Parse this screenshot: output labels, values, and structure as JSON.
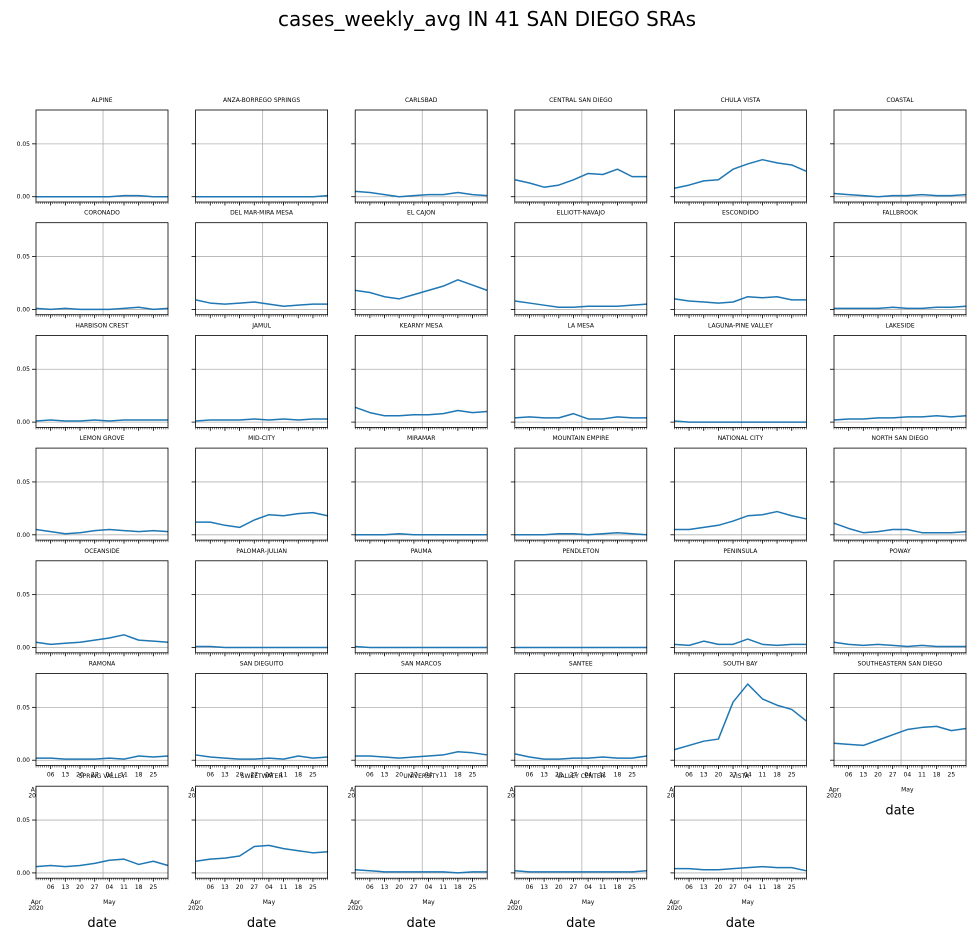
{
  "chart_data": {
    "type": "line",
    "title": "cases_weekly_avg IN 41 SAN DIEGO SRAs",
    "xlabel": "date",
    "x_range": [
      "2020-03-30",
      "2020-06-01"
    ],
    "ylim": [
      -0.005,
      0.082
    ],
    "yticks": [
      "0.00",
      "0.05"
    ],
    "ytick_values": [
      0.0,
      0.05
    ],
    "xticks": [
      {
        "date": "2020-04-06",
        "label": "06"
      },
      {
        "date": "2020-04-13",
        "label": "13"
      },
      {
        "date": "2020-04-20",
        "label": "20"
      },
      {
        "date": "2020-04-27",
        "label": "27"
      },
      {
        "date": "2020-05-04",
        "label": "04"
      },
      {
        "date": "2020-05-11",
        "label": "11"
      },
      {
        "date": "2020-05-18",
        "label": "18"
      },
      {
        "date": "2020-05-25",
        "label": "25"
      }
    ],
    "x_month_labels": [
      {
        "date": "2020-03-30",
        "label": "Apr",
        "sublabel": "2020"
      },
      {
        "date": "2020-05-04",
        "label": "May"
      }
    ],
    "grid": true,
    "line_color": "#1f77b4",
    "grid_line_dates": [
      "2020-05-01"
    ],
    "grid_line_values": [
      0.0,
      0.05
    ],
    "layout_rows": 7,
    "layout_cols": 6,
    "series_x_dates": [
      "2020-03-30",
      "2020-04-06",
      "2020-04-13",
      "2020-04-20",
      "2020-04-27",
      "2020-05-04",
      "2020-05-11",
      "2020-05-18",
      "2020-05-25",
      "2020-06-01"
    ],
    "series": [
      {
        "name": "ALPINE",
        "values": [
          0.0,
          0.0,
          0.0,
          0.0,
          0.0,
          0.0,
          0.001,
          0.001,
          0.0,
          0.0
        ]
      },
      {
        "name": "ANZA-BORREGO SPRINGS",
        "values": [
          0.0,
          0.0,
          0.0,
          0.0,
          0.0,
          0.0,
          0.0,
          0.0,
          0.0,
          0.001
        ]
      },
      {
        "name": "CARLSBAD",
        "values": [
          0.005,
          0.004,
          0.002,
          0.0,
          0.001,
          0.002,
          0.002,
          0.004,
          0.002,
          0.001
        ]
      },
      {
        "name": "CENTRAL SAN DIEGO",
        "values": [
          0.016,
          0.013,
          0.009,
          0.011,
          0.016,
          0.022,
          0.021,
          0.026,
          0.019,
          0.019
        ]
      },
      {
        "name": "CHULA VISTA",
        "values": [
          0.008,
          0.011,
          0.015,
          0.016,
          0.026,
          0.031,
          0.035,
          0.032,
          0.03,
          0.024
        ]
      },
      {
        "name": "COASTAL",
        "values": [
          0.003,
          0.002,
          0.001,
          0.0,
          0.001,
          0.001,
          0.002,
          0.001,
          0.001,
          0.002
        ]
      },
      {
        "name": "CORONADO",
        "values": [
          0.001,
          0.0,
          0.001,
          0.0,
          0.0,
          0.0,
          0.001,
          0.002,
          0.0,
          0.001
        ]
      },
      {
        "name": "DEL MAR-MIRA MESA",
        "values": [
          0.009,
          0.006,
          0.005,
          0.006,
          0.007,
          0.005,
          0.003,
          0.004,
          0.005,
          0.005
        ]
      },
      {
        "name": "EL CAJON",
        "values": [
          0.018,
          0.016,
          0.012,
          0.01,
          0.014,
          0.018,
          0.022,
          0.028,
          0.023,
          0.018
        ]
      },
      {
        "name": "ELLIOTT-NAVAJO",
        "values": [
          0.008,
          0.006,
          0.004,
          0.002,
          0.002,
          0.003,
          0.003,
          0.003,
          0.004,
          0.005
        ]
      },
      {
        "name": "ESCONDIDO",
        "values": [
          0.01,
          0.008,
          0.007,
          0.006,
          0.007,
          0.012,
          0.011,
          0.012,
          0.009,
          0.009
        ]
      },
      {
        "name": "FALLBROOK",
        "values": [
          0.001,
          0.001,
          0.001,
          0.001,
          0.002,
          0.001,
          0.001,
          0.002,
          0.002,
          0.003
        ]
      },
      {
        "name": "HARBISON CREST",
        "values": [
          0.001,
          0.002,
          0.001,
          0.001,
          0.002,
          0.001,
          0.002,
          0.002,
          0.002,
          0.002
        ]
      },
      {
        "name": "JAMUL",
        "values": [
          0.001,
          0.002,
          0.002,
          0.002,
          0.003,
          0.002,
          0.003,
          0.002,
          0.003,
          0.003
        ]
      },
      {
        "name": "KEARNY MESA",
        "values": [
          0.014,
          0.009,
          0.006,
          0.006,
          0.007,
          0.007,
          0.008,
          0.011,
          0.009,
          0.01
        ]
      },
      {
        "name": "LA MESA",
        "values": [
          0.004,
          0.005,
          0.004,
          0.004,
          0.008,
          0.003,
          0.003,
          0.005,
          0.004,
          0.004
        ]
      },
      {
        "name": "LAGUNA-PINE VALLEY",
        "values": [
          0.001,
          0.0,
          0.0,
          0.0,
          0.0,
          0.0,
          0.0,
          0.0,
          0.0,
          0.0
        ]
      },
      {
        "name": "LAKESIDE",
        "values": [
          0.002,
          0.003,
          0.003,
          0.004,
          0.004,
          0.005,
          0.005,
          0.006,
          0.005,
          0.006
        ]
      },
      {
        "name": "LEMON GROVE",
        "values": [
          0.005,
          0.003,
          0.001,
          0.002,
          0.004,
          0.005,
          0.004,
          0.003,
          0.004,
          0.003
        ]
      },
      {
        "name": "MID-CITY",
        "values": [
          0.012,
          0.012,
          0.009,
          0.007,
          0.014,
          0.019,
          0.018,
          0.02,
          0.021,
          0.018
        ]
      },
      {
        "name": "MIRAMAR",
        "values": [
          0.0,
          0.0,
          0.0,
          0.001,
          0.0,
          0.0,
          0.0,
          0.0,
          0.0,
          0.0
        ]
      },
      {
        "name": "MOUNTAIN EMPIRE",
        "values": [
          0.0,
          0.0,
          0.0,
          0.001,
          0.001,
          0.0,
          0.001,
          0.002,
          0.001,
          0.0
        ]
      },
      {
        "name": "NATIONAL CITY",
        "values": [
          0.005,
          0.005,
          0.007,
          0.009,
          0.013,
          0.018,
          0.019,
          0.022,
          0.018,
          0.015
        ]
      },
      {
        "name": "NORTH SAN DIEGO",
        "values": [
          0.011,
          0.006,
          0.002,
          0.003,
          0.005,
          0.005,
          0.002,
          0.002,
          0.002,
          0.003
        ]
      },
      {
        "name": "OCEANSIDE",
        "values": [
          0.005,
          0.003,
          0.004,
          0.005,
          0.007,
          0.009,
          0.012,
          0.007,
          0.006,
          0.005
        ]
      },
      {
        "name": "PALOMAR-JULIAN",
        "values": [
          0.001,
          0.001,
          0.0,
          0.0,
          0.0,
          0.0,
          0.0,
          0.0,
          0.0,
          0.0
        ]
      },
      {
        "name": "PAUMA",
        "values": [
          0.001,
          0.0,
          0.0,
          0.0,
          0.0,
          0.0,
          0.0,
          0.0,
          0.0,
          0.0
        ]
      },
      {
        "name": "PENDLETON",
        "values": [
          0.0,
          0.0,
          0.0,
          0.0,
          0.0,
          0.0,
          0.0,
          0.0,
          0.0,
          0.0
        ]
      },
      {
        "name": "PENINSULA",
        "values": [
          0.003,
          0.002,
          0.006,
          0.003,
          0.003,
          0.008,
          0.003,
          0.002,
          0.003,
          0.003
        ]
      },
      {
        "name": "POWAY",
        "values": [
          0.005,
          0.003,
          0.002,
          0.003,
          0.002,
          0.001,
          0.002,
          0.001,
          0.001,
          0.001
        ]
      },
      {
        "name": "RAMONA",
        "values": [
          0.002,
          0.002,
          0.001,
          0.001,
          0.001,
          0.002,
          0.001,
          0.004,
          0.003,
          0.004
        ]
      },
      {
        "name": "SAN DIEGUITO",
        "values": [
          0.005,
          0.003,
          0.002,
          0.001,
          0.001,
          0.002,
          0.001,
          0.004,
          0.002,
          0.003
        ]
      },
      {
        "name": "SAN MARCOS",
        "values": [
          0.004,
          0.004,
          0.003,
          0.002,
          0.003,
          0.004,
          0.005,
          0.008,
          0.007,
          0.005
        ]
      },
      {
        "name": "SANTEE",
        "values": [
          0.006,
          0.003,
          0.001,
          0.001,
          0.002,
          0.002,
          0.003,
          0.002,
          0.002,
          0.004
        ]
      },
      {
        "name": "SOUTH BAY",
        "values": [
          0.01,
          0.014,
          0.018,
          0.02,
          0.055,
          0.072,
          0.058,
          0.052,
          0.048,
          0.037
        ]
      },
      {
        "name": "SOUTHEASTERN SAN DIEGO",
        "values": [
          0.016,
          0.015,
          0.014,
          0.019,
          0.024,
          0.029,
          0.031,
          0.032,
          0.028,
          0.03
        ]
      },
      {
        "name": "SPRING VALLEY",
        "values": [
          0.006,
          0.007,
          0.006,
          0.007,
          0.009,
          0.012,
          0.013,
          0.008,
          0.011,
          0.007
        ]
      },
      {
        "name": "SWEETWATER",
        "values": [
          0.011,
          0.013,
          0.014,
          0.016,
          0.025,
          0.026,
          0.023,
          0.021,
          0.019,
          0.02
        ]
      },
      {
        "name": "UNIVERSITY",
        "values": [
          0.003,
          0.002,
          0.001,
          0.001,
          0.001,
          0.001,
          0.001,
          0.0,
          0.001,
          0.001
        ]
      },
      {
        "name": "VALLEY CENTER",
        "values": [
          0.002,
          0.001,
          0.001,
          0.001,
          0.001,
          0.001,
          0.001,
          0.001,
          0.001,
          0.002
        ]
      },
      {
        "name": "VISTA",
        "values": [
          0.004,
          0.004,
          0.003,
          0.003,
          0.004,
          0.005,
          0.006,
          0.005,
          0.005,
          0.002
        ]
      }
    ]
  }
}
